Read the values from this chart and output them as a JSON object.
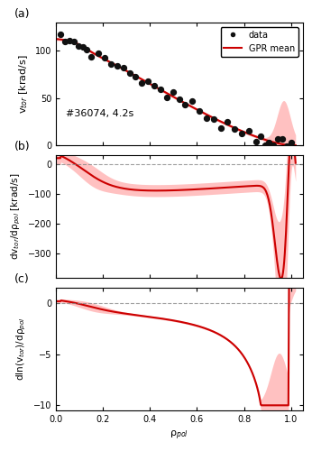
{
  "title_a": "(a)",
  "title_b": "(b)",
  "title_c": "(c)",
  "annotation": "#36074, 4.2s",
  "legend_data": "data",
  "legend_gpr": "GPR mean",
  "ylabel_a": "v$_{tor}$ [krad/s]",
  "ylabel_b": "dv$_{tor}$/dρ$_{pol}$ [krad/s]",
  "ylabel_c": "dln(v$_{tor}$)/dρ$_{pol}$",
  "xlabel": "ρ$_{pol}$",
  "xlim": [
    0,
    1.05
  ],
  "ylim_a": [
    0,
    130
  ],
  "ylim_b": [
    -380,
    30
  ],
  "ylim_c": [
    -10.5,
    1.5
  ],
  "red_color": "#cc0000",
  "red_fill": "#ff9999",
  "black_dot": "#111111",
  "bg_color": "#ffffff",
  "dashed_color": "#888888"
}
